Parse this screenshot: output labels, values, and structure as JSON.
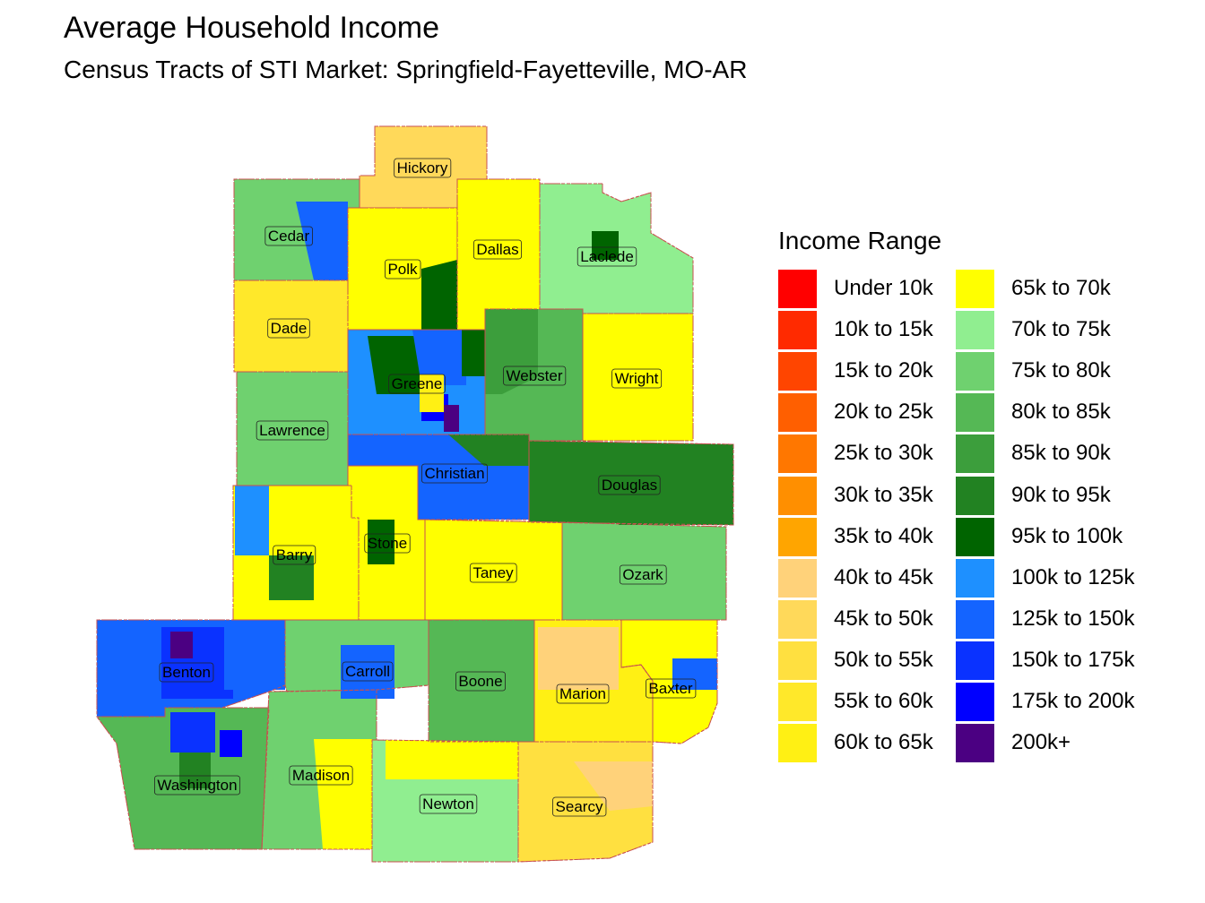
{
  "title": "Average Household Income",
  "subtitle": "Census Tracts of STI Market: Springfield-Fayetteville, MO-AR",
  "legend": {
    "title": "Income Range",
    "items": [
      {
        "label": "Under 10k",
        "color": "#ff0000"
      },
      {
        "label": "10k to 15k",
        "color": "#ff2a00"
      },
      {
        "label": "15k to 20k",
        "color": "#ff4500"
      },
      {
        "label": "20k to 25k",
        "color": "#ff5f00"
      },
      {
        "label": "25k to 30k",
        "color": "#ff7700"
      },
      {
        "label": "30k to 35k",
        "color": "#ff8f00"
      },
      {
        "label": "35k to 40k",
        "color": "#ffa500"
      },
      {
        "label": "40k to 45k",
        "color": "#ffd27a"
      },
      {
        "label": "45k to 50k",
        "color": "#ffd95a"
      },
      {
        "label": "50k to 55k",
        "color": "#ffe040"
      },
      {
        "label": "55k to 60k",
        "color": "#ffe82a"
      },
      {
        "label": "60k to 65k",
        "color": "#fff014"
      },
      {
        "label": "65k to 70k",
        "color": "#ffff00"
      },
      {
        "label": "70k to 75k",
        "color": "#90ee90"
      },
      {
        "label": "75k to 80k",
        "color": "#6fd16f"
      },
      {
        "label": "80k to 85k",
        "color": "#55b855"
      },
      {
        "label": "85k to 90k",
        "color": "#3c9e3c"
      },
      {
        "label": "90k to 95k",
        "color": "#228222"
      },
      {
        "label": "95k to 100k",
        "color": "#006400"
      },
      {
        "label": "100k to 125k",
        "color": "#1e90ff"
      },
      {
        "label": "125k to 150k",
        "color": "#1464ff"
      },
      {
        "label": "150k to 175k",
        "color": "#0a32ff"
      },
      {
        "label": "175k to 200k",
        "color": "#0000ff"
      },
      {
        "label": "200k+",
        "color": "#4b0082"
      }
    ]
  },
  "counties": [
    {
      "name": "Hickory",
      "color": "#ffd95a"
    },
    {
      "name": "Cedar",
      "color": "#6fd16f"
    },
    {
      "name": "Polk",
      "color": "#ffff00"
    },
    {
      "name": "Dallas",
      "color": "#ffff00"
    },
    {
      "name": "Laclede",
      "color": "#90ee90"
    },
    {
      "name": "Dade",
      "color": "#ffe82a"
    },
    {
      "name": "Greene",
      "color": "#1e90ff"
    },
    {
      "name": "Webster",
      "color": "#55b855"
    },
    {
      "name": "Wright",
      "color": "#ffff00"
    },
    {
      "name": "Lawrence",
      "color": "#6fd16f"
    },
    {
      "name": "Christian",
      "color": "#1464ff"
    },
    {
      "name": "Douglas",
      "color": "#228222"
    },
    {
      "name": "Barry",
      "color": "#ffff00"
    },
    {
      "name": "Stone",
      "color": "#ffff00"
    },
    {
      "name": "Taney",
      "color": "#ffff00"
    },
    {
      "name": "Ozark",
      "color": "#6fd16f"
    },
    {
      "name": "Benton",
      "color": "#1464ff"
    },
    {
      "name": "Carroll",
      "color": "#6fd16f"
    },
    {
      "name": "Boone",
      "color": "#55b855"
    },
    {
      "name": "Marion",
      "color": "#fff014"
    },
    {
      "name": "Baxter",
      "color": "#ffff00"
    },
    {
      "name": "Washington",
      "color": "#55b855"
    },
    {
      "name": "Madison",
      "color": "#6fd16f"
    },
    {
      "name": "Newton",
      "color": "#90ee90"
    },
    {
      "name": "Searcy",
      "color": "#ffe040"
    }
  ]
}
